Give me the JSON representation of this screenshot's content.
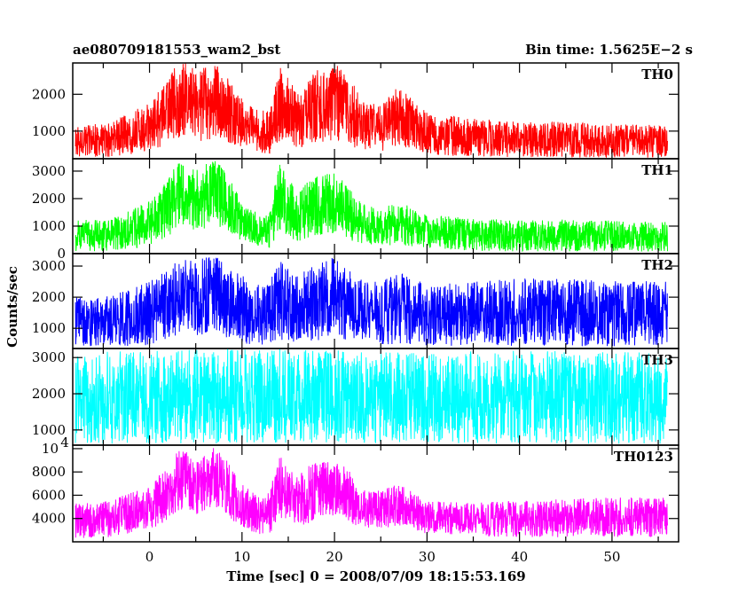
{
  "header": {
    "title": "ae080709181553_wam2_bst",
    "bin_time": "Bin time: 1.5625E−2 s"
  },
  "y_axis_label": "Counts/sec",
  "x_axis_label": "Time [sec] 0 = 2008/07/09 18:15:53.169",
  "chart_data": [
    {
      "type": "line",
      "name": "TH0",
      "color": "#ff0000",
      "xlim": [
        -8.3,
        57.2
      ],
      "ylim": [
        250,
        2850
      ],
      "yticks": [
        {
          "value": 1000,
          "label": "1000"
        },
        {
          "value": 2000,
          "label": "2000"
        }
      ],
      "x": [
        -8,
        -4,
        0,
        2,
        3,
        4,
        5,
        6,
        7,
        8,
        10,
        12,
        13,
        14,
        15,
        16,
        17,
        18,
        19,
        20,
        21,
        22,
        23,
        25,
        27,
        30,
        35,
        40,
        45,
        50,
        56
      ],
      "low": [
        280,
        300,
        450,
        650,
        800,
        900,
        780,
        700,
        800,
        750,
        550,
        400,
        380,
        700,
        650,
        500,
        550,
        650,
        700,
        750,
        650,
        550,
        500,
        450,
        480,
        350,
        300,
        290,
        280,
        280,
        280
      ],
      "high": [
        1150,
        1250,
        1800,
        2400,
        2850,
        2850,
        2650,
        2750,
        2850,
        2600,
        1900,
        1500,
        1700,
        2750,
        2500,
        2000,
        2300,
        2700,
        2600,
        2850,
        2600,
        2300,
        1800,
        1800,
        2250,
        1500,
        1350,
        1250,
        1250,
        1200,
        1150
      ]
    },
    {
      "type": "line",
      "name": "TH1",
      "color": "#00ff00",
      "xlim": [
        -8.3,
        57.2
      ],
      "ylim": [
        0,
        3450
      ],
      "yticks": [
        {
          "value": 0,
          "label": "0"
        },
        {
          "value": 1000,
          "label": "1000"
        },
        {
          "value": 2000,
          "label": "2000"
        },
        {
          "value": 3000,
          "label": "3000"
        }
      ],
      "x": [
        -8,
        -4,
        0,
        2,
        3,
        4,
        5,
        6,
        7,
        8,
        10,
        12,
        13,
        14,
        15,
        16,
        17,
        18,
        19,
        20,
        21,
        22,
        23,
        25,
        27,
        30,
        35,
        40,
        45,
        50,
        56
      ],
      "low": [
        60,
        100,
        250,
        600,
        900,
        1000,
        800,
        900,
        1000,
        900,
        450,
        250,
        200,
        700,
        600,
        400,
        450,
        600,
        700,
        700,
        600,
        450,
        350,
        300,
        300,
        200,
        100,
        80,
        80,
        70,
        60
      ],
      "high": [
        1200,
        1300,
        1900,
        2700,
        3350,
        3300,
        3000,
        3300,
        3450,
        3100,
        1900,
        1400,
        1600,
        3300,
        2800,
        2200,
        2600,
        2900,
        2900,
        3100,
        2700,
        2300,
        1800,
        1700,
        1900,
        1400,
        1300,
        1200,
        1250,
        1200,
        1150
      ]
    },
    {
      "type": "line",
      "name": "TH2",
      "color": "#0000ff",
      "xlim": [
        -8.3,
        57.2
      ],
      "ylim": [
        350,
        3400
      ],
      "yticks": [
        {
          "value": 1000,
          "label": "1000"
        },
        {
          "value": 2000,
          "label": "2000"
        },
        {
          "value": 3000,
          "label": "3000"
        }
      ],
      "x": [
        -8,
        -4,
        0,
        2,
        3,
        4,
        5,
        6,
        7,
        8,
        10,
        12,
        13,
        14,
        15,
        16,
        17,
        18,
        19,
        20,
        21,
        22,
        23,
        25,
        27,
        30,
        35,
        40,
        45,
        50,
        56
      ],
      "low": [
        400,
        420,
        450,
        600,
        800,
        900,
        750,
        800,
        850,
        750,
        500,
        450,
        420,
        600,
        550,
        450,
        500,
        600,
        650,
        700,
        600,
        550,
        500,
        480,
        500,
        450,
        420,
        420,
        420,
        420,
        420
      ],
      "high": [
        2000,
        2100,
        2500,
        2900,
        3300,
        3350,
        3100,
        3300,
        3400,
        3200,
        2700,
        2400,
        2500,
        3200,
        2900,
        2700,
        2900,
        3100,
        3200,
        3300,
        3000,
        2800,
        2600,
        2500,
        2800,
        2400,
        2500,
        2600,
        2600,
        2550,
        2500
      ]
    },
    {
      "type": "line",
      "name": "TH3",
      "color": "#00ffff",
      "xlim": [
        -8.3,
        57.2
      ],
      "ylim": [
        580,
        3250
      ],
      "yticks": [
        {
          "value": 1000,
          "label": "1000"
        },
        {
          "value": 2000,
          "label": "2000"
        },
        {
          "value": 3000,
          "label": "3000"
        }
      ],
      "x": [
        -8,
        0,
        10,
        20,
        30,
        40,
        50,
        56
      ],
      "low": [
        620,
        620,
        620,
        620,
        620,
        620,
        620,
        620
      ],
      "high": [
        3150,
        3200,
        3250,
        3200,
        3150,
        3200,
        3150,
        3150
      ]
    },
    {
      "type": "line",
      "name": "TH0123",
      "color": "#ff00ff",
      "xlim": [
        -8.3,
        57.2
      ],
      "ylim": [
        2000,
        10300
      ],
      "yticks": [
        {
          "value": 4000,
          "label": "4000"
        },
        {
          "value": 6000,
          "label": "6000"
        },
        {
          "value": 8000,
          "label": "8000"
        },
        {
          "value": 10000,
          "label": "10",
          "exponent": "4"
        }
      ],
      "x": [
        -8,
        -4,
        0,
        2,
        3,
        4,
        5,
        6,
        7,
        8,
        10,
        12,
        13,
        14,
        15,
        16,
        17,
        18,
        19,
        20,
        21,
        22,
        23,
        25,
        27,
        30,
        35,
        40,
        45,
        50,
        56
      ],
      "low": [
        2300,
        2400,
        3000,
        3800,
        4500,
        4800,
        4300,
        4600,
        4900,
        4500,
        3200,
        2600,
        2500,
        4100,
        3800,
        3300,
        3500,
        3900,
        4100,
        4300,
        3900,
        3500,
        3200,
        3100,
        3300,
        2700,
        2500,
        2400,
        2400,
        2400,
        2350
      ],
      "high": [
        5300,
        5600,
        6900,
        8500,
        9800,
        9800,
        9200,
        9700,
        10300,
        9500,
        7000,
        5700,
        6300,
        9700,
        8700,
        7600,
        8400,
        8900,
        9000,
        9200,
        8600,
        7700,
        6500,
        6400,
        7000,
        5500,
        5400,
        5500,
        5700,
        5800,
        5800
      ]
    }
  ],
  "x_ticks": [
    {
      "value": 0,
      "label": "0"
    },
    {
      "value": 10,
      "label": "10"
    },
    {
      "value": 20,
      "label": "20"
    },
    {
      "value": 30,
      "label": "30"
    },
    {
      "value": 40,
      "label": "40"
    },
    {
      "value": 50,
      "label": "50"
    }
  ]
}
